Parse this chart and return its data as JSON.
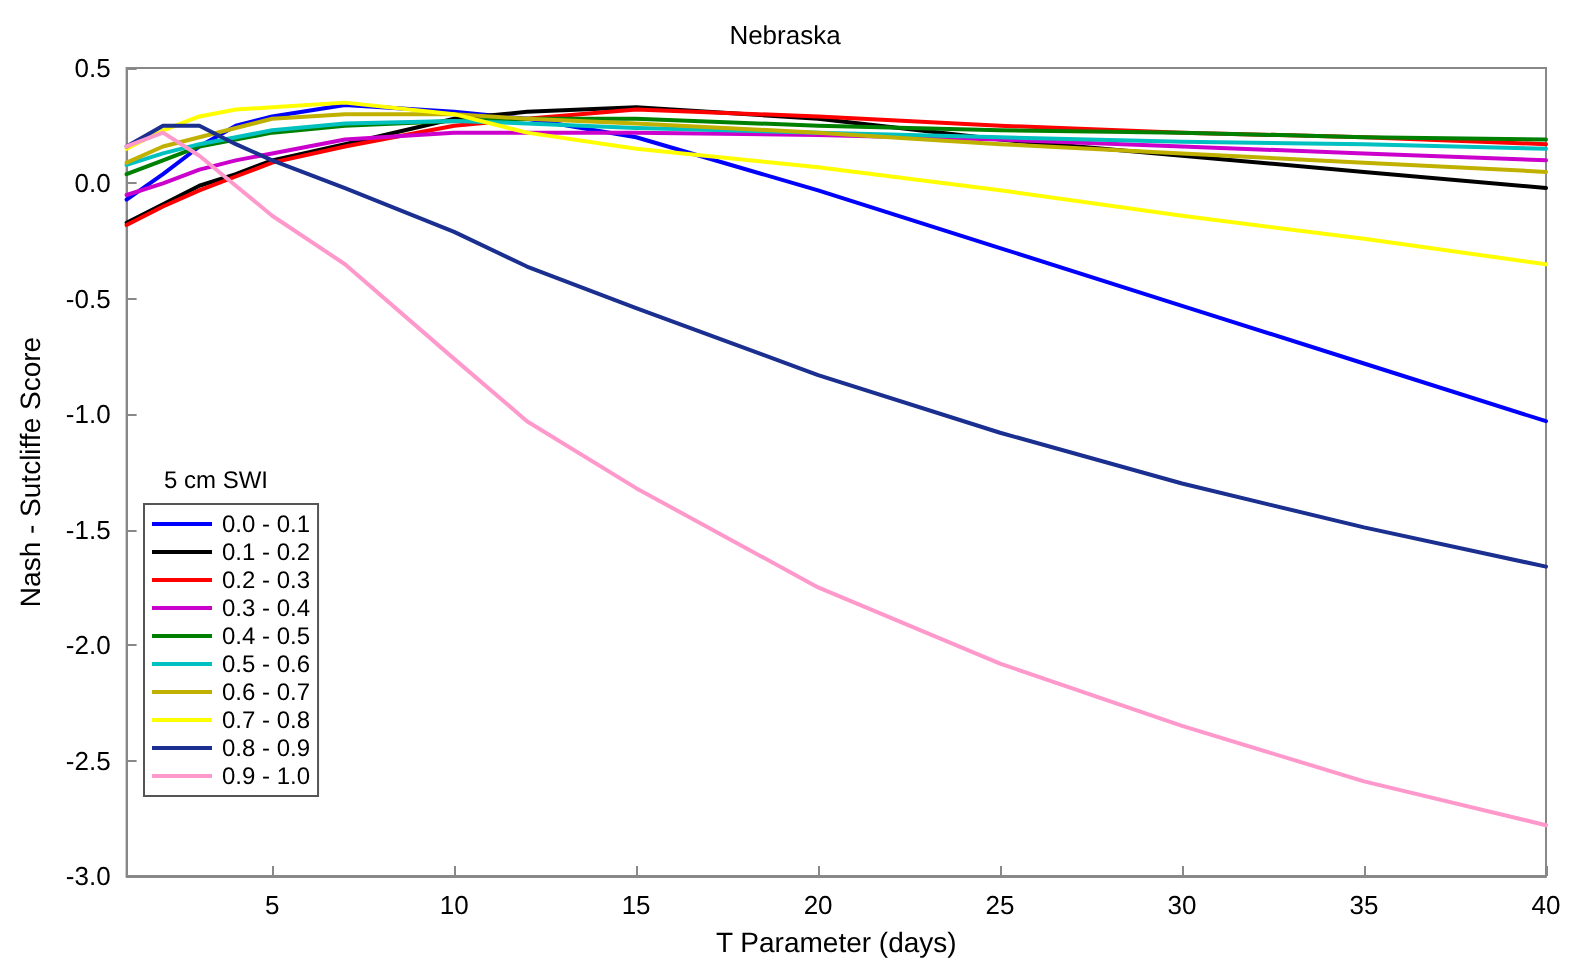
{
  "chart_data": {
    "type": "line",
    "title": "Nebraska",
    "xlabel": "T Parameter (days)",
    "ylabel": "Nash - Sutcliffe Score",
    "legend_title": "5 cm SWI",
    "legend": "bottom left",
    "grid": false,
    "marker": "none",
    "line_style": "solid",
    "x": [
      1,
      2,
      3,
      4,
      5,
      7,
      10,
      12,
      15,
      20,
      25,
      30,
      35,
      40
    ],
    "xlim": [
      1,
      40
    ],
    "xticks": [
      5,
      10,
      15,
      20,
      25,
      30,
      35,
      40
    ],
    "ylim": [
      -3,
      0.5
    ],
    "yticks": [
      {
        "value": -3,
        "label": "-3.0"
      },
      {
        "value": -2.5,
        "label": "-2.5"
      },
      {
        "value": -2,
        "label": "-2.0"
      },
      {
        "value": -1.5,
        "label": "-1.5"
      },
      {
        "value": -1,
        "label": "-1.0"
      },
      {
        "value": -0.5,
        "label": "-0.5"
      },
      {
        "value": 0,
        "label": "0.0"
      },
      {
        "value": 0.5,
        "label": "0.5"
      }
    ],
    "series": [
      {
        "name": "0.0 - 0.1",
        "color": "#0000ff",
        "values": [
          -0.07,
          0.04,
          0.16,
          0.25,
          0.29,
          0.34,
          0.31,
          0.28,
          0.2,
          -0.03,
          -0.28,
          -0.53,
          -0.78,
          -1.03
        ]
      },
      {
        "name": "0.1 - 0.2",
        "color": "#000000",
        "values": [
          -0.17,
          -0.09,
          -0.01,
          0.04,
          0.1,
          0.17,
          0.28,
          0.31,
          0.33,
          0.28,
          0.19,
          0.12,
          0.05,
          -0.02
        ]
      },
      {
        "name": "0.2 - 0.3",
        "color": "#ff0000",
        "values": [
          -0.18,
          -0.1,
          -0.03,
          0.03,
          0.09,
          0.16,
          0.25,
          0.28,
          0.32,
          0.29,
          0.25,
          0.22,
          0.2,
          0.17
        ]
      },
      {
        "name": "0.3 - 0.4",
        "color": "#cc00cc",
        "values": [
          -0.05,
          0.0,
          0.06,
          0.1,
          0.13,
          0.19,
          0.22,
          0.22,
          0.22,
          0.21,
          0.19,
          0.16,
          0.13,
          0.1
        ]
      },
      {
        "name": "0.4 - 0.5",
        "color": "#008000",
        "values": [
          0.04,
          0.1,
          0.16,
          0.19,
          0.22,
          0.25,
          0.27,
          0.28,
          0.28,
          0.25,
          0.23,
          0.22,
          0.2,
          0.19
        ]
      },
      {
        "name": "0.5 - 0.6",
        "color": "#00c0c0",
        "values": [
          0.08,
          0.13,
          0.17,
          0.2,
          0.23,
          0.26,
          0.27,
          0.26,
          0.24,
          0.22,
          0.2,
          0.18,
          0.17,
          0.15
        ]
      },
      {
        "name": "0.6 - 0.7",
        "color": "#c0b000",
        "values": [
          0.09,
          0.16,
          0.2,
          0.24,
          0.28,
          0.3,
          0.3,
          0.28,
          0.26,
          0.22,
          0.17,
          0.13,
          0.09,
          0.05
        ]
      },
      {
        "name": "0.7 - 0.8",
        "color": "#ffff00",
        "values": [
          0.15,
          0.23,
          0.29,
          0.32,
          0.33,
          0.35,
          0.3,
          0.22,
          0.15,
          0.07,
          -0.03,
          -0.14,
          -0.24,
          -0.35
        ]
      },
      {
        "name": "0.8 - 0.9",
        "color": "#1a2f8f",
        "values": [
          0.16,
          0.25,
          0.25,
          0.17,
          0.1,
          -0.02,
          -0.21,
          -0.36,
          -0.54,
          -0.83,
          -1.08,
          -1.3,
          -1.49,
          -1.66
        ]
      },
      {
        "name": "0.9 - 1.0",
        "color": "#ff99cc",
        "values": [
          0.16,
          0.22,
          0.12,
          -0.01,
          -0.14,
          -0.35,
          -0.76,
          -1.03,
          -1.32,
          -1.75,
          -2.08,
          -2.35,
          -2.59,
          -2.78
        ]
      }
    ]
  }
}
